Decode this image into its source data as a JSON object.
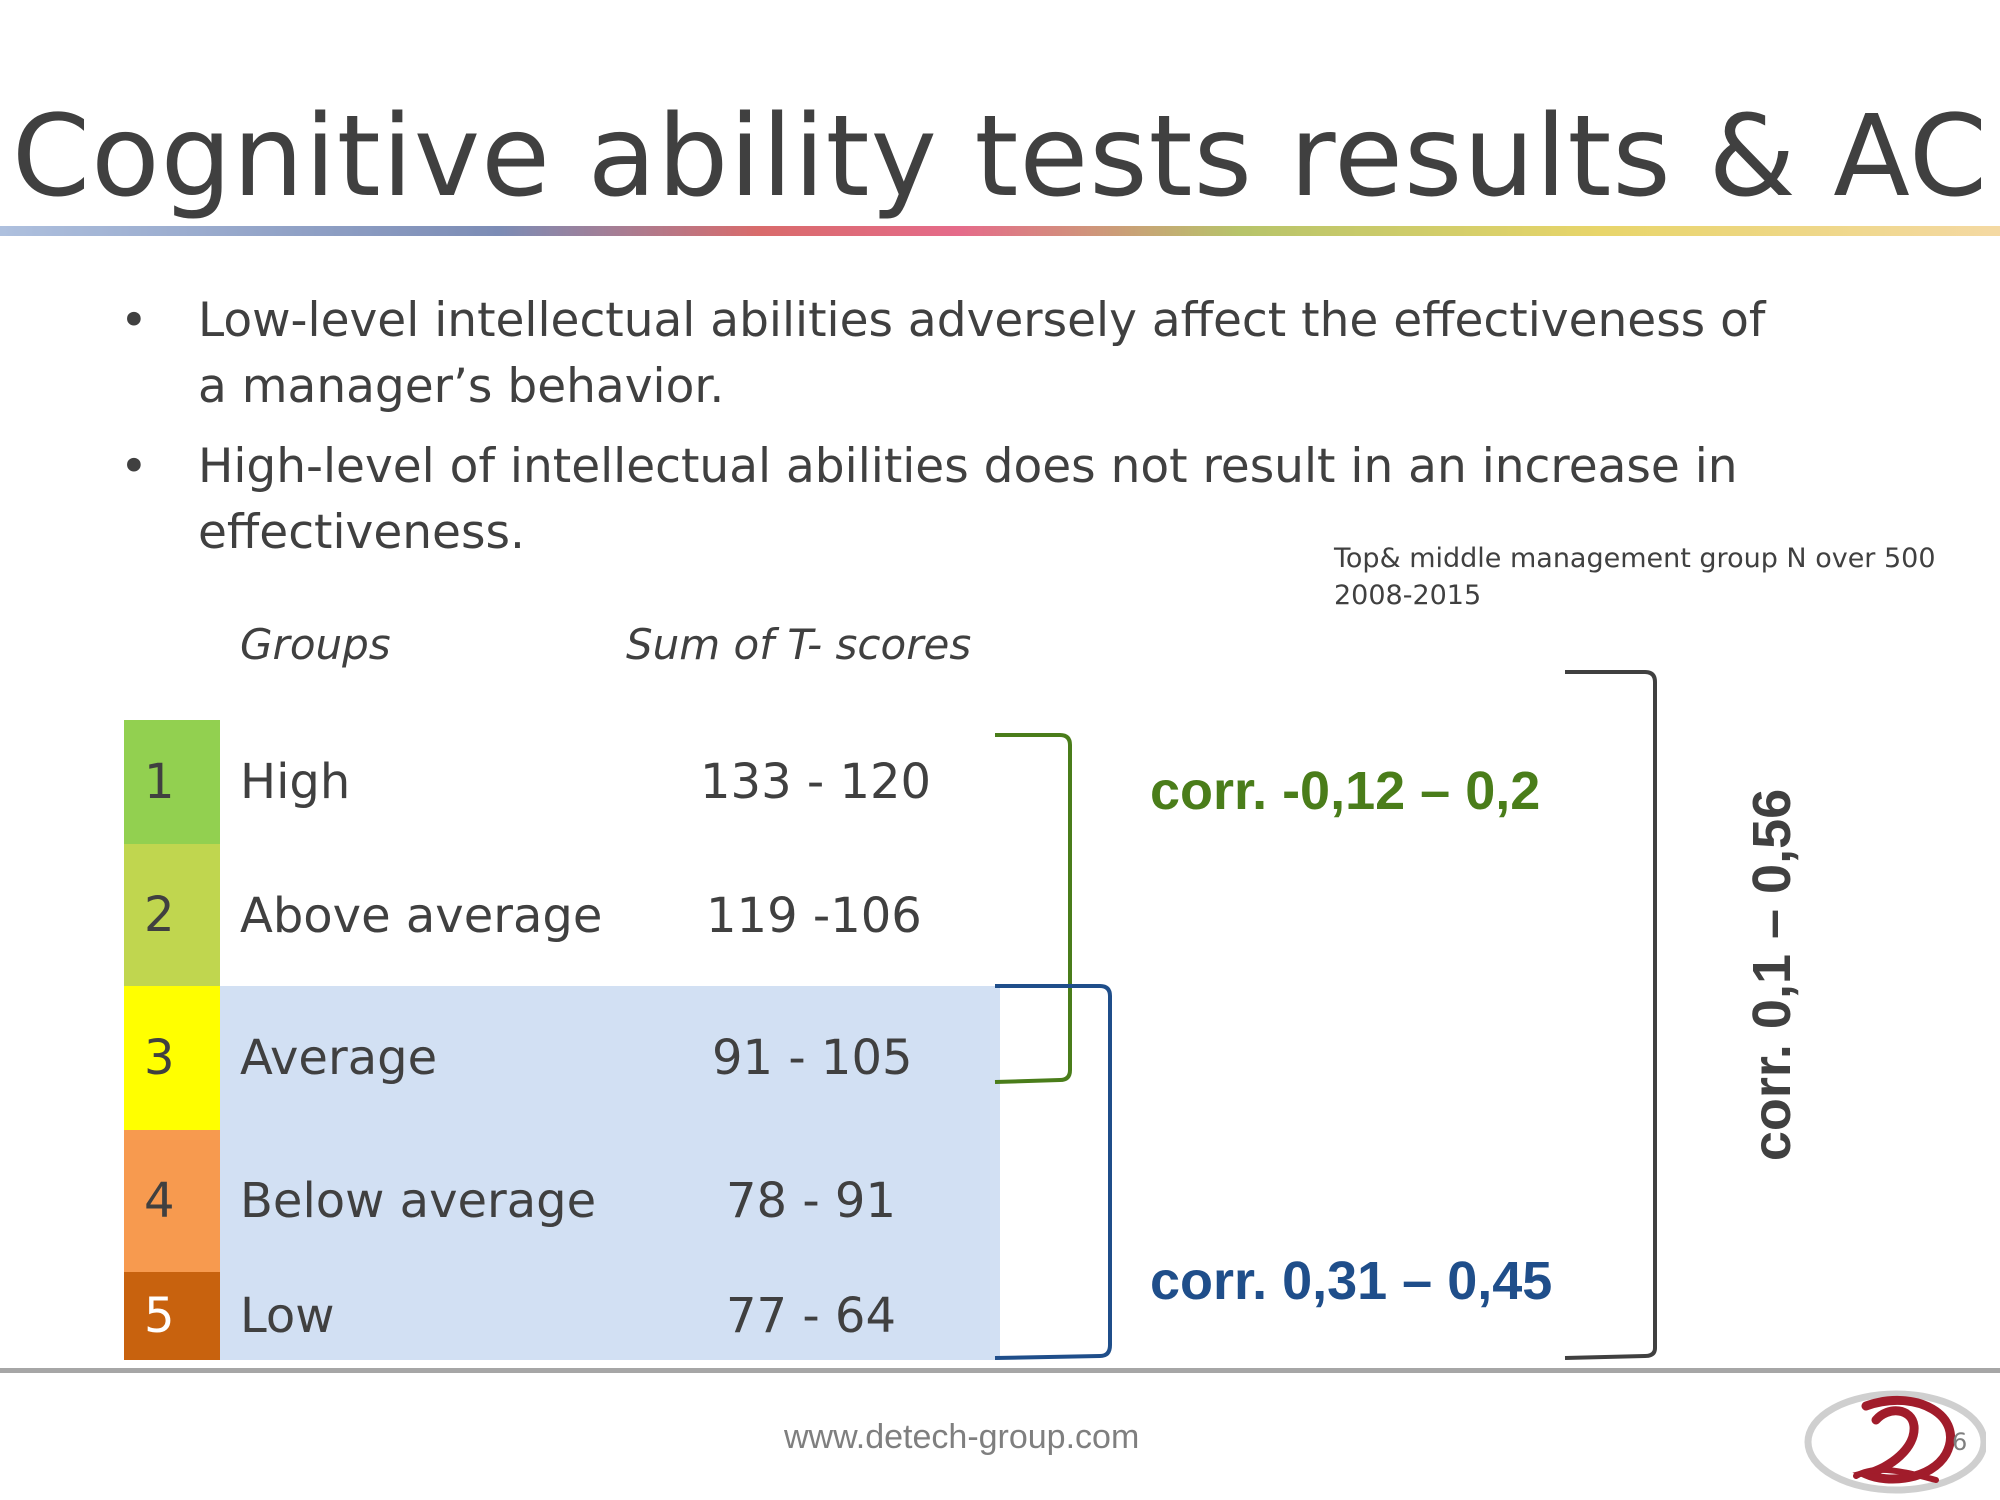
{
  "title": "Cognitive ability tests results & AC",
  "bullets": [
    {
      "marker": "•",
      "text": "Low-level intellectual abilities adversely affect the effectiveness of a manager’s behavior."
    },
    {
      "marker": "•",
      "text": "High-level of intellectual abilities does not result in an increase in effectiveness."
    }
  ],
  "note": {
    "line1": "Top& middle management group N over 500",
    "line2": "2008-2015"
  },
  "table": {
    "headers": {
      "groups": "Groups",
      "scores": "Sum of T- scores"
    },
    "rows": [
      {
        "num": "1",
        "group": "High",
        "score": "133 - 120",
        "color": "#92d050"
      },
      {
        "num": "2",
        "group": "Above average",
        "score": "119 -106",
        "color": "#c0d64f"
      },
      {
        "num": "3",
        "group": "Average",
        "score": "91 - 105",
        "color": "#ffff00"
      },
      {
        "num": "4",
        "group": "Below average",
        "score": "78 - 91",
        "color": "#f79a4f"
      },
      {
        "num": "5",
        "group": "Low",
        "score": "77 - 64",
        "color": "#c8620e"
      }
    ]
  },
  "correlations": {
    "upper": {
      "text": "corr. -0,12 – 0,2",
      "color": "#4a7d1a"
    },
    "lower": {
      "text": "corr. 0,31 – 0,45",
      "color": "#1f4e8a"
    },
    "overall": {
      "text": "corr. 0,1 – 0,56",
      "color": "#404040"
    }
  },
  "footer": {
    "website": "www.detech-group.com",
    "page": "6"
  }
}
